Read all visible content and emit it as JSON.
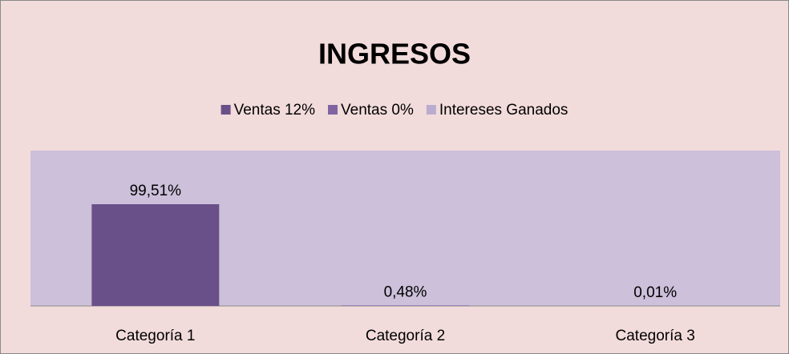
{
  "chart_data": {
    "type": "bar",
    "title": "INGRESOS",
    "categories": [
      "Categoría 1",
      "Categoría 2",
      "Categoría 3"
    ],
    "series": [
      {
        "name": "Ventas 12%",
        "color": "#6a5088",
        "values": [
          99.51,
          null,
          null
        ],
        "value_labels": [
          "99,51%",
          null,
          null
        ]
      },
      {
        "name": "Ventas 0%",
        "color": "#8064a2",
        "values": [
          null,
          0.48,
          null
        ],
        "value_labels": [
          null,
          "0,48%",
          null
        ]
      },
      {
        "name": "Intereses Ganados",
        "color": "#b9acd0",
        "values": [
          null,
          null,
          0.01
        ],
        "value_labels": [
          null,
          null,
          "0,01%"
        ]
      }
    ],
    "ylim": [
      0,
      152
    ],
    "legend": "top"
  }
}
